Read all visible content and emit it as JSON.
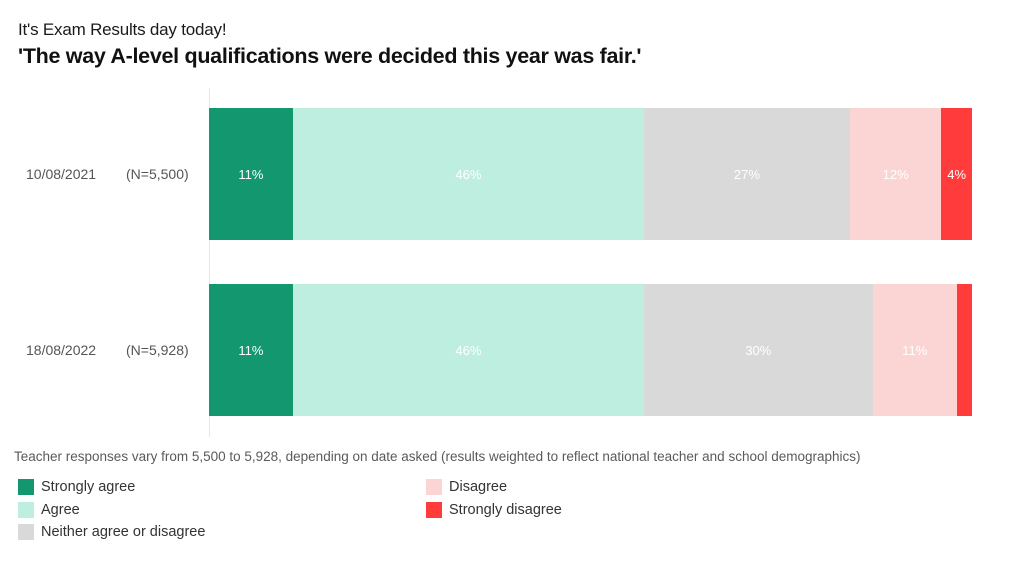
{
  "header": {
    "subtitle": "It's Exam Results day today!",
    "title": "'The way A-level qualifications were decided this year was fair.'"
  },
  "colors": {
    "strongly_agree": "#13976f",
    "agree": "#bdeedf",
    "neither": "#d9d9d9",
    "disagree": "#fbd5d3",
    "strongly_disagree": "#ff3b3b"
  },
  "rows": [
    {
      "date": "10/08/2021",
      "n": "(N=5,500)",
      "segments": [
        {
          "key": "strongly_agree",
          "value": 11,
          "label": "11%"
        },
        {
          "key": "agree",
          "value": 46,
          "label": "46%"
        },
        {
          "key": "neither",
          "value": 27,
          "label": "27%"
        },
        {
          "key": "disagree",
          "value": 12,
          "label": "12%"
        },
        {
          "key": "strongly_disagree",
          "value": 4,
          "label": "4%"
        }
      ]
    },
    {
      "date": "18/08/2022",
      "n": "(N=5,928)",
      "segments": [
        {
          "key": "strongly_agree",
          "value": 11,
          "label": "11%"
        },
        {
          "key": "agree",
          "value": 46,
          "label": "46%"
        },
        {
          "key": "neither",
          "value": 30,
          "label": "30%"
        },
        {
          "key": "disagree",
          "value": 11,
          "label": "11%"
        },
        {
          "key": "strongly_disagree",
          "value": 2,
          "label": ""
        }
      ]
    }
  ],
  "footnote": "Teacher responses vary from 5,500 to 5,928, depending on date asked (results weighted to reflect national teacher and school demographics)",
  "legend": [
    {
      "key": "strongly_agree",
      "label": "Strongly agree"
    },
    {
      "key": "agree",
      "label": "Agree"
    },
    {
      "key": "neither",
      "label": "Neither agree or disagree"
    },
    {
      "key": "disagree",
      "label": "Disagree"
    },
    {
      "key": "strongly_disagree",
      "label": "Strongly disagree"
    }
  ],
  "chart_data": {
    "type": "bar",
    "orientation": "horizontal",
    "stacked": true,
    "percent": true,
    "title": "'The way A-level qualifications were decided this year was fair.'",
    "subtitle": "It's Exam Results day today!",
    "categories": [
      "10/08/2021 (N=5,500)",
      "18/08/2022 (N=5,928)"
    ],
    "series": [
      {
        "name": "Strongly agree",
        "values": [
          11,
          11
        ],
        "color": "#13976f"
      },
      {
        "name": "Agree",
        "values": [
          46,
          46
        ],
        "color": "#bdeedf"
      },
      {
        "name": "Neither agree or disagree",
        "values": [
          27,
          30
        ],
        "color": "#d9d9d9"
      },
      {
        "name": "Disagree",
        "values": [
          12,
          11
        ],
        "color": "#fbd5d3"
      },
      {
        "name": "Strongly disagree",
        "values": [
          4,
          2
        ],
        "color": "#ff3b3b"
      }
    ],
    "data_labels": [
      [
        "11%",
        "46%",
        "27%",
        "12%",
        "4%"
      ],
      [
        "11%",
        "46%",
        "30%",
        "11%",
        ""
      ]
    ],
    "xlabel": "",
    "ylabel": "",
    "xlim": [
      0,
      100
    ],
    "grid": false,
    "legend_position": "bottom",
    "note": "Teacher responses vary from 5,500 to 5,928, depending on date asked (results weighted to reflect national teacher and school demographics)"
  }
}
